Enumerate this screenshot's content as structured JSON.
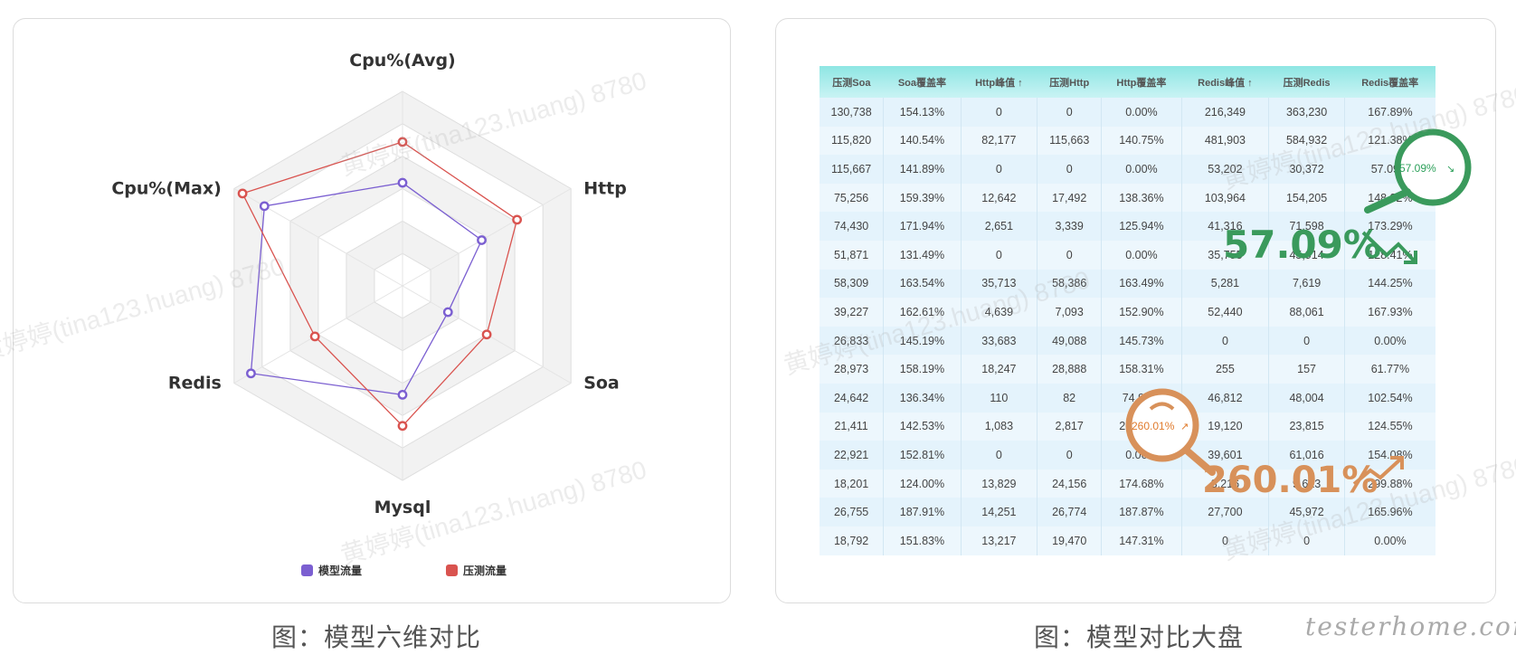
{
  "captions": {
    "left": "图：模型六维对比",
    "right": "图：模型对比大盘"
  },
  "chart_data": [
    {
      "type": "radar",
      "axes": [
        "Cpu%(Avg)",
        "Http",
        "Soa",
        "Mysql",
        "Redis",
        "Cpu%(Max)"
      ],
      "rings": 6,
      "series": [
        {
          "name": "模型流量",
          "color": "#7b5fd1",
          "values": [
            0.53,
            0.47,
            0.27,
            0.56,
            0.9,
            0.82
          ]
        },
        {
          "name": "压测流量",
          "color": "#d9534f",
          "values": [
            0.74,
            0.68,
            0.5,
            0.72,
            0.52,
            0.95
          ]
        }
      ],
      "legend": "bottom"
    },
    {
      "type": "table",
      "columns": [
        "压测Soa",
        "Soa覆盖率",
        "Http峰值 ↑",
        "压测Http",
        "Http覆盖率",
        "Redis峰值 ↑",
        "压测Redis",
        "Redis覆盖率"
      ],
      "rows": [
        [
          "130,738",
          "154.13%",
          "0",
          "0",
          "0.00%",
          "216,349",
          "363,230",
          "167.89%"
        ],
        [
          "115,820",
          "140.54%",
          "82,177",
          "115,663",
          "140.75%",
          "481,903",
          "584,932",
          "121.38%"
        ],
        [
          "115,667",
          "141.89%",
          "0",
          "0",
          "0.00%",
          "53,202",
          "30,372",
          "57.09%"
        ],
        [
          "75,256",
          "159.39%",
          "12,642",
          "17,492",
          "138.36%",
          "103,964",
          "154,205",
          "148.32%"
        ],
        [
          "74,430",
          "171.94%",
          "2,651",
          "3,339",
          "125.94%",
          "41,316",
          "71,598",
          "173.29%"
        ],
        [
          "51,871",
          "131.49%",
          "0",
          "0",
          "0.00%",
          "35,755",
          "45,914",
          "128.41%"
        ],
        [
          "58,309",
          "163.54%",
          "35,713",
          "58,386",
          "163.49%",
          "5,281",
          "7,619",
          "144.25%"
        ],
        [
          "39,227",
          "162.61%",
          "4,639",
          "7,093",
          "152.90%",
          "52,440",
          "88,061",
          "167.93%"
        ],
        [
          "26,833",
          "145.19%",
          "33,683",
          "49,088",
          "145.73%",
          "0",
          "0",
          "0.00%"
        ],
        [
          "28,973",
          "158.19%",
          "18,247",
          "28,888",
          "158.31%",
          "255",
          "157",
          "61.77%"
        ],
        [
          "24,642",
          "136.34%",
          "110",
          "82",
          "74.90%",
          "46,812",
          "48,004",
          "102.54%"
        ],
        [
          "21,411",
          "142.53%",
          "1,083",
          "2,817",
          "260.01%",
          "19,120",
          "23,815",
          "124.55%"
        ],
        [
          "22,921",
          "152.81%",
          "0",
          "0",
          "0.00%",
          "39,601",
          "61,016",
          "154.08%"
        ],
        [
          "18,201",
          "124.00%",
          "13,829",
          "24,156",
          "174.68%",
          "3,216",
          "9,613",
          "299.88%"
        ],
        [
          "26,755",
          "187.91%",
          "14,251",
          "26,774",
          "187.87%",
          "27,700",
          "45,972",
          "165.96%"
        ],
        [
          "18,792",
          "151.83%",
          "13,217",
          "19,470",
          "147.31%",
          "0",
          "0",
          "0.00%"
        ]
      ]
    }
  ],
  "callouts": {
    "green": {
      "value": "57.09%",
      "small": "57.09%",
      "color": "#3a9a5c"
    },
    "orange": {
      "value": "260.01%",
      "small": "260.01%",
      "color": "#d8915a"
    }
  },
  "watermark": "黄婷婷(tina123.huang) 8780",
  "brand": "testerhome.com"
}
